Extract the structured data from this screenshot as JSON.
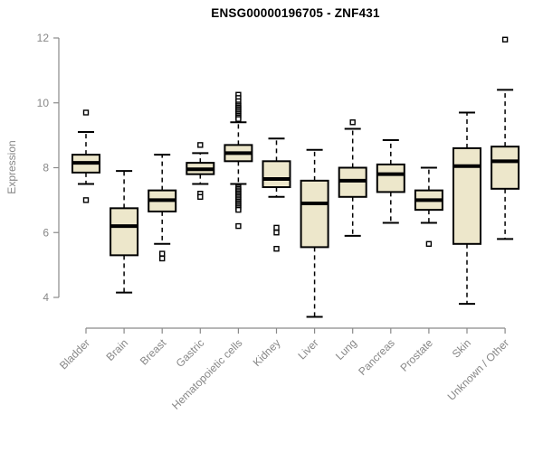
{
  "colors": {
    "background": "#ffffff",
    "title": "#000000",
    "axis": "#8a8a8a",
    "axis_text": "#878787",
    "box_fill": "#EDE7CB",
    "box_border": "#000000",
    "median": "#000000",
    "whisker": "#000000",
    "outlier_stroke": "#000000",
    "outlier_fill": "#ffffff"
  },
  "chart_data": {
    "type": "boxplot",
    "title": "ENSG00000196705 - ZNF431",
    "xlabel": "",
    "ylabel": "Expression",
    "yticks": [
      4,
      6,
      8,
      10,
      12
    ],
    "ylim": [
      3.2,
      12.1
    ],
    "grid": false,
    "legend": "none",
    "categories": [
      "Bladder",
      "Brain",
      "Breast",
      "Gastric",
      "Hematopoietic cells",
      "Kidney",
      "Liver",
      "Lung",
      "Pancreas",
      "Prostate",
      "Skin",
      "Unknown / Other"
    ],
    "series": [
      {
        "name": "Bladder",
        "low": 7.5,
        "q1": 7.85,
        "median": 8.15,
        "q3": 8.4,
        "high": 9.1,
        "outliers": [
          9.7,
          7.0
        ]
      },
      {
        "name": "Brain",
        "low": 4.15,
        "q1": 5.3,
        "median": 6.2,
        "q3": 6.75,
        "high": 7.9,
        "outliers": []
      },
      {
        "name": "Breast",
        "low": 5.65,
        "q1": 6.65,
        "median": 7.0,
        "q3": 7.3,
        "high": 8.4,
        "outliers": [
          5.35,
          5.2
        ]
      },
      {
        "name": "Gastric",
        "low": 7.5,
        "q1": 7.8,
        "median": 7.95,
        "q3": 8.15,
        "high": 8.45,
        "outliers": [
          8.7,
          7.2,
          7.1
        ]
      },
      {
        "name": "Hematopoietic cells",
        "low": 7.5,
        "q1": 8.2,
        "median": 8.45,
        "q3": 8.7,
        "high": 9.4,
        "outliers": [
          10.25,
          10.15,
          10.05,
          9.95,
          9.9,
          9.85,
          9.8,
          9.75,
          9.7,
          9.65,
          9.6,
          9.55,
          9.5,
          7.4,
          7.35,
          7.3,
          7.25,
          7.2,
          7.15,
          7.1,
          7.05,
          7.0,
          6.95,
          6.9,
          6.85,
          6.8,
          6.75,
          6.7,
          6.2
        ]
      },
      {
        "name": "Kidney",
        "low": 7.1,
        "q1": 7.4,
        "median": 7.65,
        "q3": 8.2,
        "high": 8.9,
        "outliers": [
          6.15,
          6.0,
          5.5
        ]
      },
      {
        "name": "Liver",
        "low": 3.4,
        "q1": 5.55,
        "median": 6.9,
        "q3": 7.6,
        "high": 8.55,
        "outliers": []
      },
      {
        "name": "Lung",
        "low": 5.9,
        "q1": 7.1,
        "median": 7.6,
        "q3": 8.0,
        "high": 9.2,
        "outliers": [
          9.4
        ]
      },
      {
        "name": "Pancreas",
        "low": 6.3,
        "q1": 7.25,
        "median": 7.8,
        "q3": 8.1,
        "high": 8.85,
        "outliers": []
      },
      {
        "name": "Prostate",
        "low": 6.3,
        "q1": 6.7,
        "median": 7.0,
        "q3": 7.3,
        "high": 8.0,
        "outliers": [
          5.65
        ]
      },
      {
        "name": "Skin",
        "low": 3.8,
        "q1": 5.65,
        "median": 8.05,
        "q3": 8.6,
        "high": 9.7,
        "outliers": []
      },
      {
        "name": "Unknown / Other",
        "low": 5.8,
        "q1": 7.35,
        "median": 8.2,
        "q3": 8.65,
        "high": 10.4,
        "outliers": [
          11.95
        ]
      }
    ]
  }
}
